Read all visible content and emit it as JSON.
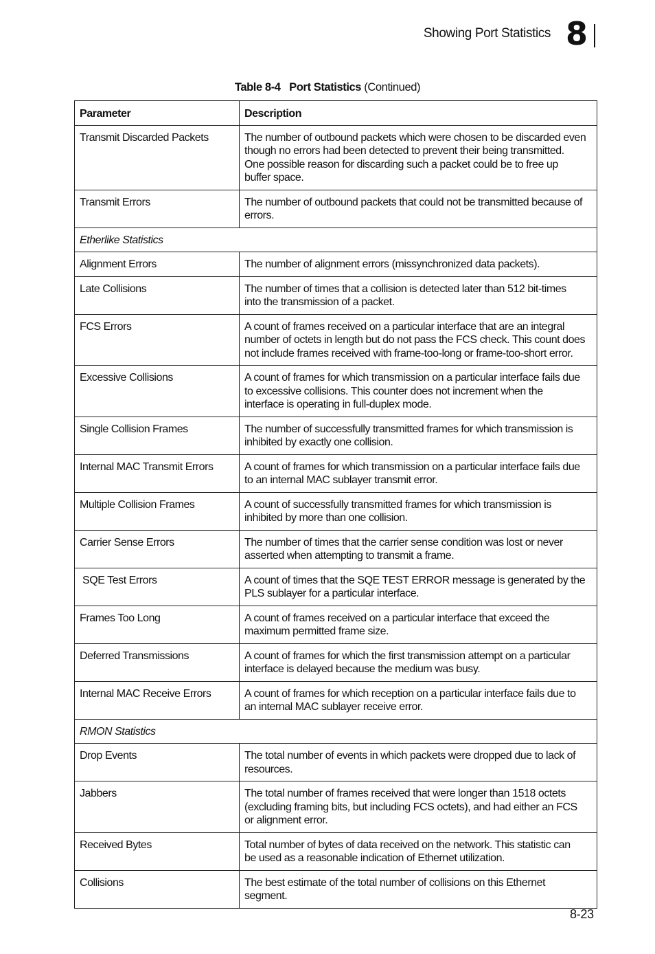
{
  "header": {
    "section_title": "Showing Port Statistics",
    "chapter_number": "8"
  },
  "caption": {
    "label": "Table 8-4",
    "title": "Port Statistics",
    "suffix": "(Continued)"
  },
  "table": {
    "columns": [
      "Parameter",
      "Description"
    ],
    "rows": [
      {
        "param": "Transmit Discarded Packets",
        "desc": [
          "The number of outbound packets which were chosen to be discarded even",
          "though no errors had been detected to prevent their being transmitted.",
          "One possible reason for discarding such a packet could be to free up",
          "buffer space."
        ]
      },
      {
        "param": "Transmit Errors",
        "desc": [
          "The number of outbound packets that could not be transmitted because of",
          "errors."
        ]
      },
      {
        "section": "Etherlike Statistics"
      },
      {
        "param": "Alignment Errors",
        "desc": [
          "The number of alignment errors (missynchronized data packets)."
        ]
      },
      {
        "param": "Late Collisions",
        "desc": [
          "The number of times that a collision is detected later than 512 bit-times",
          "into the transmission of a packet."
        ]
      },
      {
        "param": "FCS Errors",
        "desc": [
          "A count of frames received on a particular interface that are an integral",
          "number of octets in length but do not pass the FCS check. This count does",
          "not include frames received with frame-too-long or frame-too-short error."
        ]
      },
      {
        "param": "Excessive Collisions",
        "desc": [
          "A count of frames for which transmission on a particular interface fails due",
          "to excessive collisions. This counter does not increment when the",
          "interface is operating in full-duplex mode."
        ]
      },
      {
        "param": "Single Collision Frames",
        "desc": [
          "The number of successfully transmitted frames for which transmission is",
          "inhibited by exactly one collision."
        ]
      },
      {
        "param": "Internal MAC Transmit Errors",
        "desc": [
          "A count of frames for which transmission on a particular interface fails due",
          "to an internal MAC sublayer transmit error."
        ]
      },
      {
        "param": "Multiple Collision Frames",
        "desc": [
          "A count of successfully transmitted frames for which transmission is",
          "inhibited by more than one collision."
        ]
      },
      {
        "param": "Carrier Sense Errors",
        "desc": [
          "The number of times that the carrier sense condition was lost or never",
          "asserted when attempting to transmit a frame."
        ]
      },
      {
        "param": " SQE Test Errors",
        "desc": [
          "A count of times that the SQE TEST ERROR message is generated by the",
          "PLS sublayer for a particular interface."
        ]
      },
      {
        "param": "Frames Too Long",
        "desc": [
          "A count of frames received on a particular interface that exceed the",
          "maximum permitted frame size."
        ]
      },
      {
        "param": "Deferred Transmissions",
        "desc": [
          "A count of frames for which the first transmission attempt on a particular",
          "interface is delayed because the medium was busy."
        ]
      },
      {
        "param": "Internal MAC Receive Errors",
        "desc": [
          "A count of frames for which reception on a particular interface fails due to",
          "an internal MAC sublayer receive error."
        ]
      },
      {
        "section": "RMON Statistics"
      },
      {
        "param": "Drop Events",
        "desc": [
          "The total number of events in which packets were dropped due to lack of",
          "resources."
        ]
      },
      {
        "param": "Jabbers",
        "desc": [
          "The total number of frames received that were longer than 1518 octets",
          "(excluding framing bits, but including FCS octets), and had either an FCS",
          "or alignment error."
        ]
      },
      {
        "param": "Received Bytes",
        "desc": [
          "Total number of bytes of data received on the network. This statistic can",
          "be used as a reasonable indication of Ethernet utilization."
        ]
      },
      {
        "param": "Collisions",
        "desc": [
          "The best estimate of the total number of collisions on this Ethernet",
          "segment."
        ]
      }
    ]
  },
  "footer": {
    "page_number": "8-23"
  }
}
